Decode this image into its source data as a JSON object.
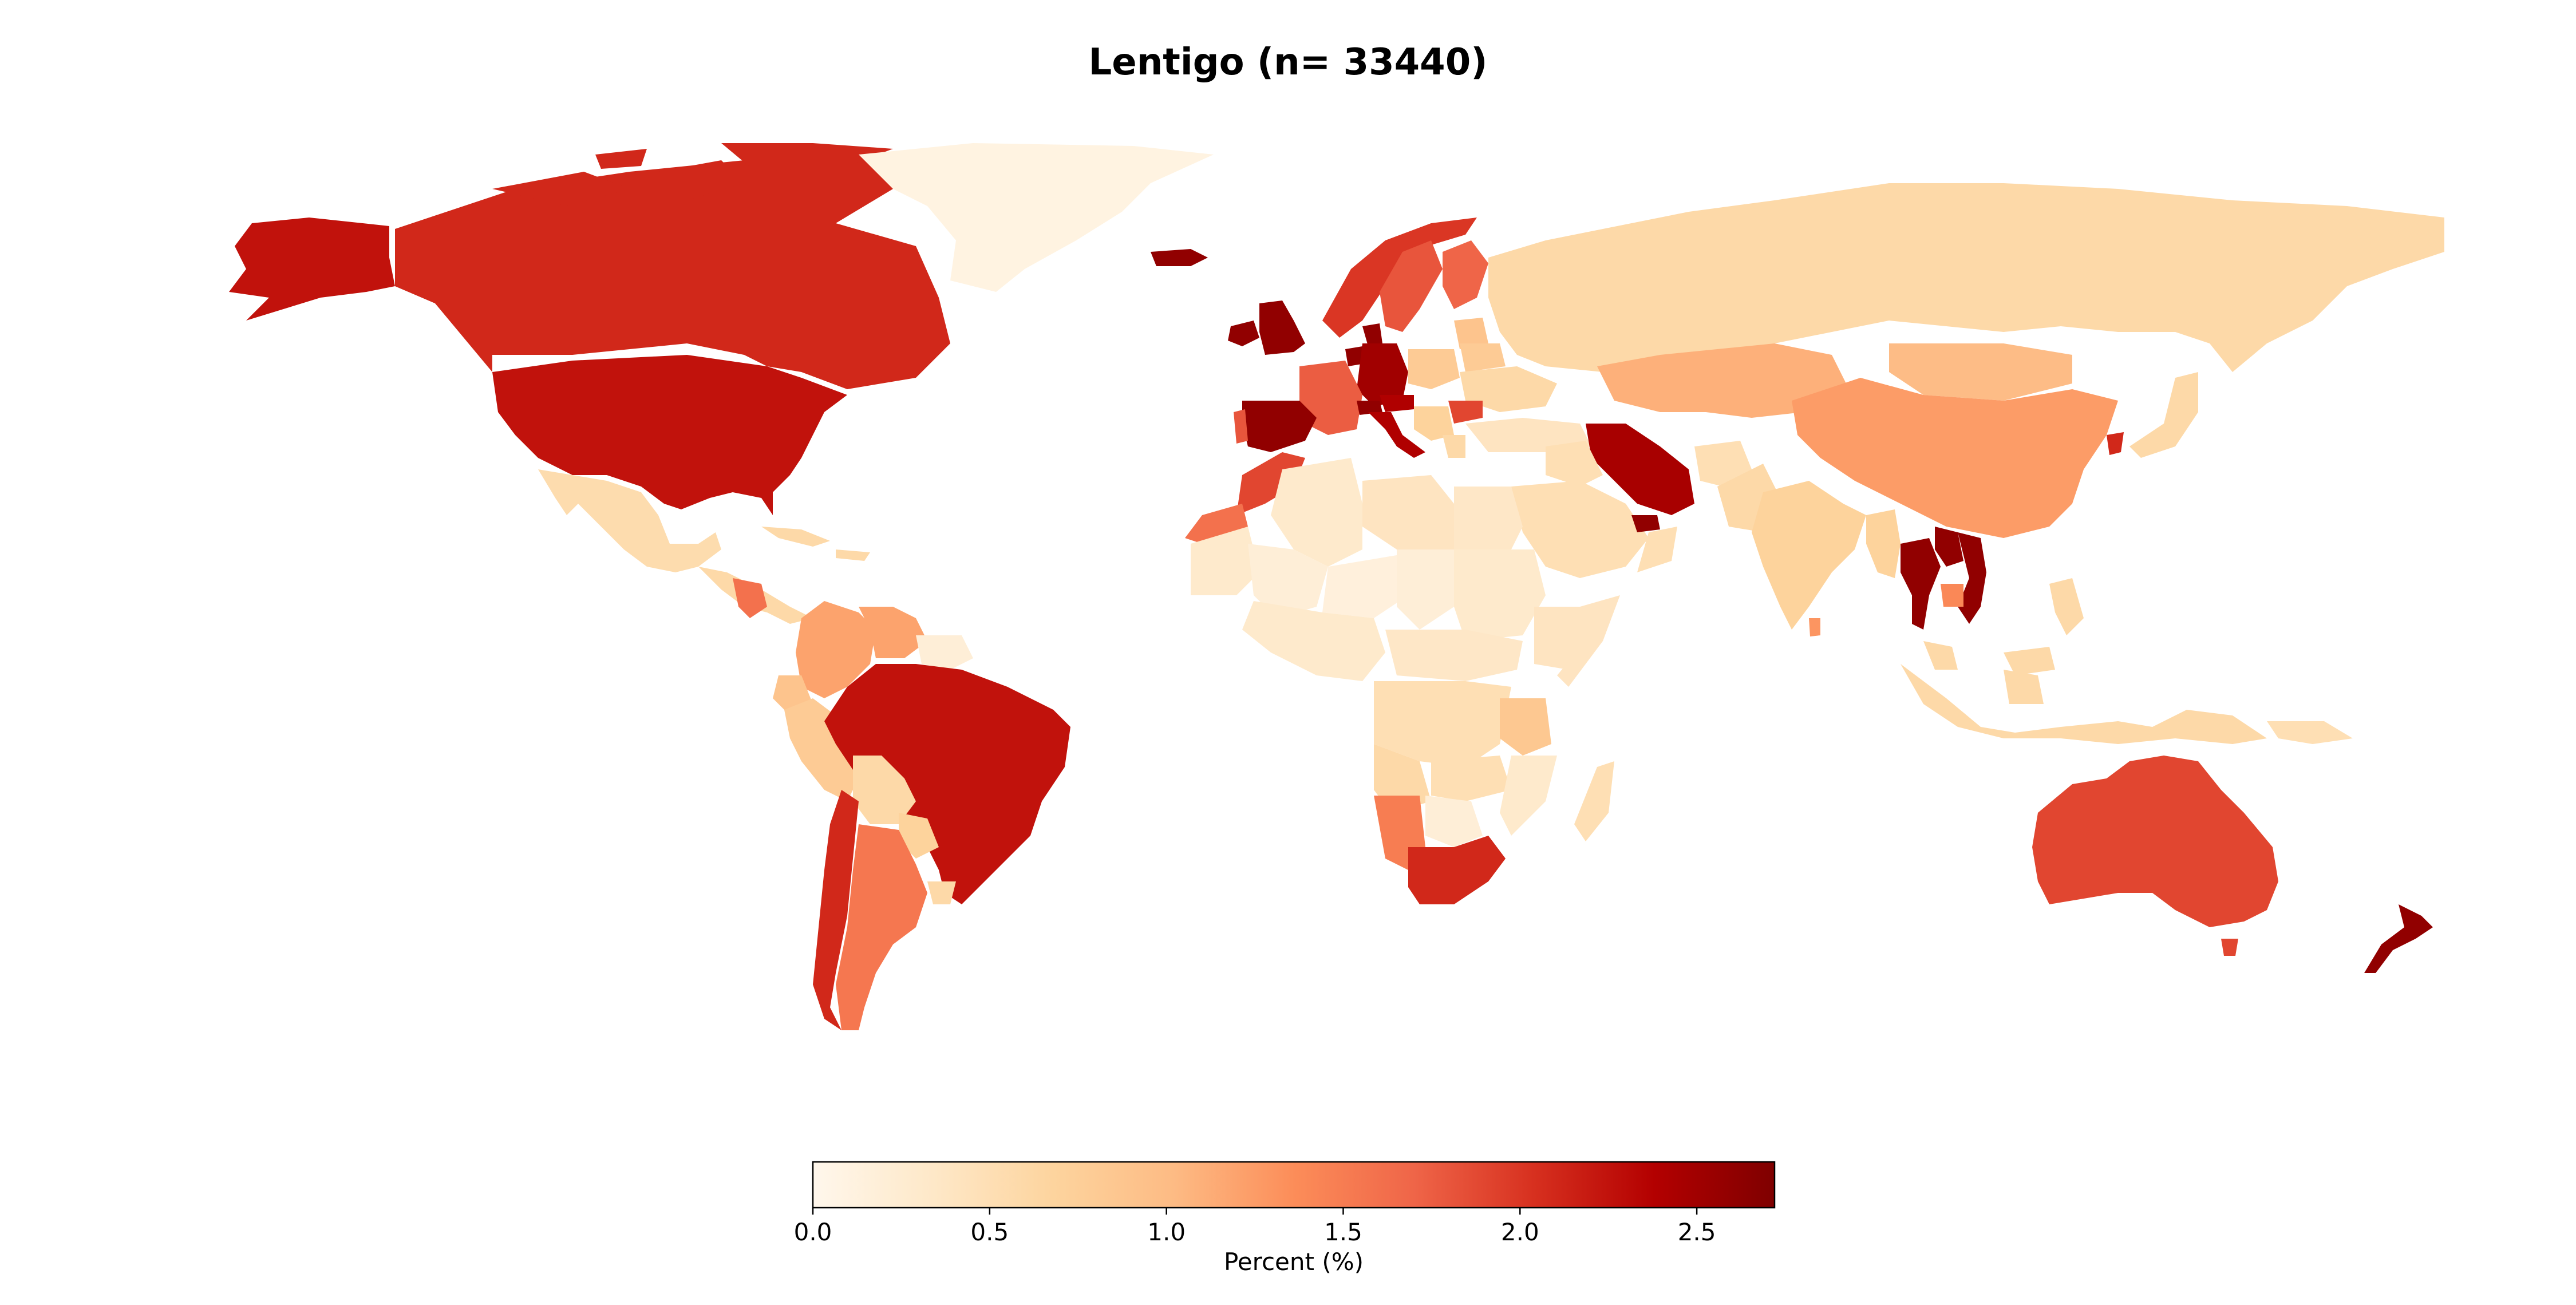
{
  "title": "Lentigo (n= 33440)",
  "colorbar": {
    "label": "Percent (%)",
    "min": 0.0,
    "max": 2.72,
    "ticks": [
      0.0,
      0.5,
      1.0,
      1.5,
      2.0,
      2.5
    ],
    "tick_labels": [
      "0.0",
      "0.5",
      "1.0",
      "1.5",
      "2.0",
      "2.5"
    ],
    "colormap": "OrRd",
    "stops": [
      "#fff7ec",
      "#fee8c8",
      "#fdd49e",
      "#fdbb84",
      "#fc8d59",
      "#ef6548",
      "#d7301f",
      "#b30000",
      "#7f0000"
    ]
  },
  "chart_data": {
    "type": "choropleth",
    "title": "Lentigo (n= 33440)",
    "value_label": "Percent (%)",
    "range": [
      0.0,
      2.72
    ],
    "values_percent": {
      "United States": 2.25,
      "Canada": 2.1,
      "Alaska": 2.25,
      "Greenland": 0.1,
      "Iceland": 2.6,
      "Mexico": 0.55,
      "Central America": 0.6,
      "Guatemala": 1.6,
      "Cuba": 0.6,
      "Colombia": 1.2,
      "Venezuela": 1.2,
      "Guiana": 0.2,
      "Ecuador": 0.9,
      "Peru": 0.8,
      "Brazil": 2.25,
      "Bolivia": 0.6,
      "Paraguay": 0.7,
      "Uruguay": 0.6,
      "Chile": 2.1,
      "Argentina": 1.55,
      "Ireland": 2.6,
      "United Kingdom": 2.6,
      "Norway": 2.0,
      "Sweden": 1.8,
      "Finland": 1.7,
      "Denmark": 2.6,
      "Netherlands": 2.6,
      "Germany": 2.5,
      "Poland": 0.8,
      "Baltics": 0.9,
      "France": 1.75,
      "Switzerland": 2.6,
      "Austria": 2.4,
      "Italy": 2.4,
      "Spain": 2.6,
      "Portugal": 1.8,
      "Balkans": 0.7,
      "Bulgaria": 1.9,
      "Greece": 0.6,
      "Ukraine": 0.6,
      "Belarus": 0.8,
      "Turkey": 0.4,
      "Russia": 0.6,
      "Kazakhstan": 1.1,
      "Mongolia": 1.0,
      "China": 1.25,
      "Korea": 2.1,
      "Japan": 0.6,
      "Iran": 2.45,
      "Iraq": 0.5,
      "Saudi Arabia": 0.5,
      "UAE": 2.6,
      "Oman": 0.5,
      "Afghanistan": 0.5,
      "Pakistan": 0.6,
      "India": 0.7,
      "Sri Lanka": 1.3,
      "Myanmar": 0.7,
      "Thailand": 2.6,
      "Laos": 2.6,
      "Vietnam": 2.6,
      "Cambodia": 1.4,
      "Malaysia": 0.6,
      "Indonesia": 0.6,
      "Philippines": 0.6,
      "Papua New Guinea": 0.5,
      "Australia": 1.9,
      "Tasmania": 1.9,
      "New Zealand": 2.6,
      "Morocco": 1.9,
      "Western Sahara": 1.6,
      "Algeria": 0.3,
      "Libya": 0.4,
      "Egypt": 0.35,
      "Mauritania": 0.3,
      "Mali": 0.2,
      "Niger": 0.15,
      "Chad": 0.2,
      "Sudan": 0.3,
      "Ethiopia": 0.4,
      "Somalia": 0.4,
      "Nigeria": 0.3,
      "Central Africa": 0.35,
      "Congo": 0.5,
      "Tanzania": 0.85,
      "Angola": 0.6,
      "Zambia": 0.5,
      "Namibia": 1.5,
      "Botswana": 0.2,
      "Mozambique": 0.3,
      "South Africa": 2.1,
      "Madagascar": 0.5
    }
  }
}
